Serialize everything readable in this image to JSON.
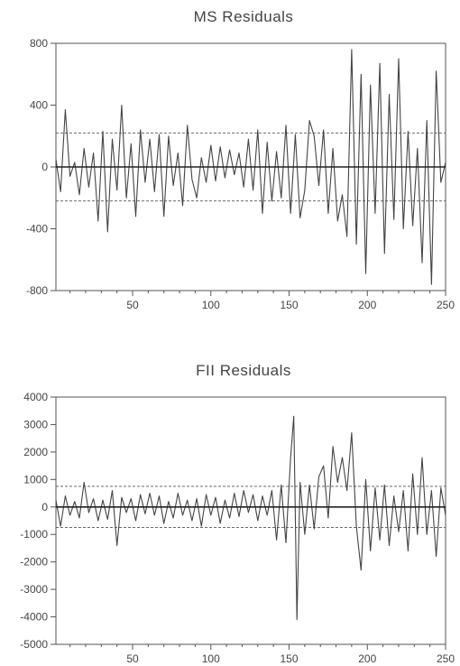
{
  "chart_data": [
    {
      "type": "line",
      "title": "MS Residuals",
      "xlabel": "",
      "ylabel": "",
      "xlim": [
        1,
        250
      ],
      "ylim": [
        -800,
        800
      ],
      "yticks": [
        "800",
        "400",
        "0",
        "-400",
        "-800"
      ],
      "ytick_values": [
        800,
        400,
        0,
        -400,
        -800
      ],
      "xticks": [
        "50",
        "100",
        "150",
        "200",
        "250"
      ],
      "xtick_values": [
        50,
        100,
        150,
        200,
        250
      ],
      "reference_lines": [
        0
      ],
      "band_lines": [
        220,
        -220
      ],
      "grid": false,
      "series": [
        {
          "x": [
            1,
            4,
            7,
            10,
            13,
            16,
            19,
            22,
            25,
            28,
            31,
            34,
            37,
            40,
            43,
            46,
            49,
            52,
            55,
            58,
            61,
            64,
            67,
            70,
            73,
            76,
            79,
            82,
            85,
            88,
            91,
            94,
            97,
            100,
            103,
            106,
            109,
            112,
            115,
            118,
            121,
            124,
            127,
            130,
            133,
            136,
            139,
            142,
            145,
            148,
            151,
            154,
            157,
            160,
            163,
            166,
            169,
            172,
            175,
            178,
            181,
            184,
            187,
            190,
            193,
            196,
            199,
            202,
            205,
            208,
            211,
            214,
            217,
            220,
            223,
            226,
            229,
            232,
            235,
            238,
            241,
            244,
            247,
            250
          ],
          "y": [
            50,
            -160,
            370,
            -60,
            30,
            -180,
            120,
            -130,
            90,
            -350,
            230,
            -420,
            180,
            -150,
            400,
            -200,
            150,
            -320,
            240,
            -100,
            180,
            -160,
            210,
            -320,
            200,
            -120,
            90,
            -250,
            270,
            -80,
            -200,
            60,
            -100,
            140,
            -90,
            130,
            -70,
            110,
            -50,
            90,
            -130,
            180,
            -150,
            240,
            -300,
            160,
            -220,
            100,
            -200,
            270,
            -300,
            210,
            -330,
            -150,
            300,
            200,
            -120,
            240,
            -300,
            120,
            -350,
            -180,
            -450,
            760,
            -500,
            600,
            -690,
            530,
            -300,
            670,
            -560,
            470,
            -340,
            700,
            -400,
            230,
            -380,
            120,
            -620,
            300,
            -760,
            620,
            -100,
            30
          ]
        }
      ]
    },
    {
      "type": "line",
      "title": "FII Residuals",
      "xlabel": "",
      "ylabel": "",
      "xlim": [
        1,
        250
      ],
      "ylim": [
        -5000,
        4000
      ],
      "yticks": [
        "4000",
        "3000",
        "2000",
        "1000",
        "0",
        "-1000",
        "-2000",
        "-3000",
        "-4000",
        "-5000"
      ],
      "ytick_values": [
        4000,
        3000,
        2000,
        1000,
        0,
        -1000,
        -2000,
        -3000,
        -4000,
        -5000
      ],
      "xticks": [
        "50",
        "100",
        "150",
        "200",
        "250"
      ],
      "xtick_values": [
        50,
        100,
        150,
        200,
        250
      ],
      "reference_lines": [
        0
      ],
      "band_lines": [
        750,
        -750
      ],
      "grid": false,
      "series": [
        {
          "x": [
            1,
            4,
            7,
            10,
            13,
            16,
            19,
            22,
            25,
            28,
            31,
            34,
            37,
            40,
            43,
            46,
            49,
            52,
            55,
            58,
            61,
            64,
            67,
            70,
            73,
            76,
            79,
            82,
            85,
            88,
            91,
            94,
            97,
            100,
            103,
            106,
            109,
            112,
            115,
            118,
            121,
            124,
            127,
            130,
            133,
            136,
            139,
            142,
            145,
            148,
            151,
            153,
            155,
            157,
            160,
            163,
            166,
            169,
            172,
            175,
            178,
            181,
            184,
            187,
            190,
            193,
            196,
            199,
            202,
            205,
            208,
            211,
            214,
            217,
            220,
            223,
            226,
            229,
            232,
            235,
            238,
            241,
            244,
            247,
            250
          ],
          "y": [
            250,
            -700,
            400,
            -300,
            200,
            -400,
            900,
            -200,
            300,
            -500,
            250,
            -450,
            600,
            -1400,
            350,
            -200,
            300,
            -500,
            450,
            -250,
            500,
            -300,
            400,
            -600,
            200,
            -400,
            500,
            -300,
            250,
            -500,
            300,
            -700,
            450,
            -300,
            350,
            -600,
            250,
            -400,
            500,
            -350,
            600,
            -200,
            450,
            -500,
            400,
            -300,
            600,
            -1200,
            800,
            -1300,
            1800,
            3300,
            -4100,
            900,
            -1000,
            800,
            -800,
            1100,
            1500,
            -400,
            2200,
            900,
            1800,
            600,
            2700,
            -700,
            -2300,
            1000,
            -1600,
            700,
            -1200,
            800,
            -1400,
            400,
            -900,
            600,
            -1600,
            1200,
            -1000,
            1800,
            -1000,
            600,
            -1800,
            700,
            -300
          ]
        }
      ]
    }
  ]
}
